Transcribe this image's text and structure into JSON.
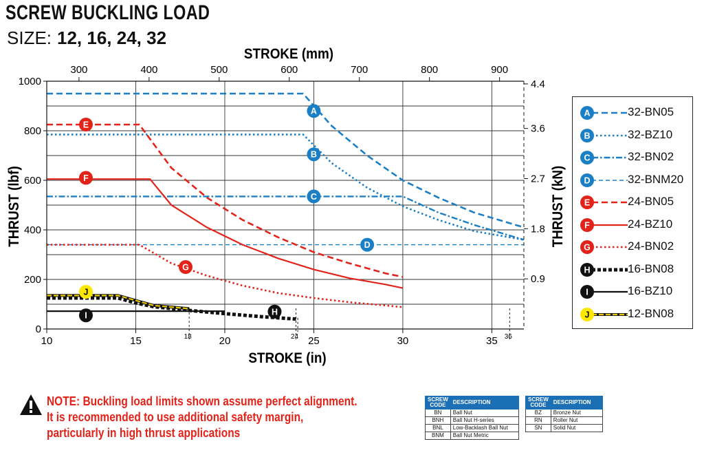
{
  "header": {
    "title": "SCREW BUCKLING LOAD",
    "size_label": "SIZE:",
    "size_values": "12, 16, 24, 32"
  },
  "chart_data": {
    "type": "line",
    "title": "SCREW BUCKLING LOAD",
    "xlabel": "STROKE (in)",
    "x2label": "STROKE (mm)",
    "ylabel": "THRUST (lbf)",
    "y2label": "THRUST (kN)",
    "xlim": [
      10,
      36.8
    ],
    "ylim": [
      0,
      1000
    ],
    "x_ticks": [
      10,
      15,
      20,
      25,
      30,
      35
    ],
    "x_tick_labels": [
      "10",
      "15",
      "20",
      "25",
      "30",
      "35"
    ],
    "x_minor_ticks": [
      18,
      24,
      36
    ],
    "x_minor_tick_labels": [
      "18",
      "24",
      "36"
    ],
    "x2_ticks": [
      300,
      400,
      500,
      600,
      700,
      800,
      900
    ],
    "x2_tick_labels": [
      "300",
      "400",
      "500",
      "600",
      "700",
      "800",
      "900"
    ],
    "y_ticks": [
      0,
      200,
      400,
      600,
      800,
      1000
    ],
    "y_tick_labels": [
      "0",
      "200",
      "400",
      "600",
      "800",
      "1000"
    ],
    "y2_ticks": [
      0.9,
      1.8,
      2.7,
      3.6,
      4.4
    ],
    "y2_tick_labels": [
      "0.9",
      "1.8",
      "2.7",
      "3.6",
      "4.4"
    ],
    "series": [
      {
        "marker": "A",
        "name": "32-BN05",
        "color": "#1a7fc4",
        "style": "dash",
        "x": [
          10,
          12,
          14,
          16,
          18,
          20,
          22,
          24.4,
          26,
          28,
          30,
          32,
          34,
          36.8
        ],
        "y": [
          950,
          950,
          950,
          950,
          950,
          950,
          950,
          950,
          820,
          700,
          600,
          530,
          470,
          410
        ],
        "label_at": [
          25,
          880
        ]
      },
      {
        "marker": "B",
        "name": "32-BZ10",
        "color": "#1a7fc4",
        "style": "dot",
        "x": [
          10,
          12,
          14,
          16,
          18,
          20,
          22,
          24.4,
          26,
          28,
          30,
          32,
          34,
          36.8
        ],
        "y": [
          785,
          785,
          785,
          785,
          785,
          785,
          785,
          785,
          670,
          570,
          495,
          440,
          395,
          360
        ],
        "label_at": [
          25,
          705
        ]
      },
      {
        "marker": "C",
        "name": "32-BN02",
        "color": "#1a7fc4",
        "style": "dashdot",
        "x": [
          10,
          15,
          20,
          25,
          30,
          32,
          34,
          36.8
        ],
        "y": [
          535,
          535,
          535,
          535,
          535,
          470,
          420,
          360
        ],
        "label_at": [
          25,
          535
        ]
      },
      {
        "marker": "D",
        "name": "32-BNM20",
        "color": "#1a7fc4",
        "style": "thindash",
        "x": [
          10,
          20,
          30,
          36.8
        ],
        "y": [
          340,
          340,
          340,
          340
        ],
        "label_at": [
          28,
          340
        ]
      },
      {
        "marker": "E",
        "name": "24-BN05",
        "color": "#e2231a",
        "style": "dash",
        "x": [
          10,
          12,
          15.2,
          17,
          19,
          21,
          23,
          25,
          27,
          29,
          30
        ],
        "y": [
          825,
          825,
          825,
          650,
          530,
          440,
          370,
          310,
          265,
          225,
          210
        ],
        "label_at": [
          12.2,
          825
        ]
      },
      {
        "marker": "F",
        "name": "24-BZ10",
        "color": "#e2231a",
        "style": "solid",
        "x": [
          10,
          12,
          14,
          15.8,
          17,
          19,
          21,
          23,
          25,
          27,
          29,
          30
        ],
        "y": [
          605,
          605,
          605,
          605,
          500,
          410,
          340,
          285,
          240,
          205,
          180,
          165
        ],
        "label_at": [
          12.2,
          610
        ]
      },
      {
        "marker": "G",
        "name": "24-BN02",
        "color": "#e2231a",
        "style": "dot",
        "x": [
          10,
          12,
          15.2,
          17,
          19,
          21,
          23,
          25,
          27,
          29,
          30
        ],
        "y": [
          340,
          340,
          340,
          265,
          215,
          175,
          145,
          125,
          108,
          95,
          88
        ],
        "label_at": [
          17.8,
          250
        ]
      },
      {
        "marker": "H",
        "name": "16-BN08",
        "color": "#111111",
        "style": "thickdash",
        "x": [
          10,
          12,
          14,
          15,
          16,
          18,
          20,
          22,
          24
        ],
        "y": [
          125,
          125,
          125,
          105,
          90,
          75,
          62,
          50,
          40
        ],
        "label_at": [
          22.8,
          70
        ]
      },
      {
        "marker": "I",
        "name": "16-BZ10",
        "color": "#111111",
        "style": "solid",
        "x": [
          10,
          14,
          18,
          20
        ],
        "y": [
          72,
          72,
          72,
          72
        ],
        "label_at": [
          12.2,
          55
        ]
      },
      {
        "marker": "J",
        "name": "12-BN08",
        "color": "#e8c800",
        "style": "dashyellow",
        "x": [
          10,
          12,
          14,
          15,
          16,
          18
        ],
        "y": [
          135,
          135,
          135,
          115,
          95,
          82
        ],
        "label_at": [
          12.2,
          150
        ]
      }
    ]
  },
  "legend": {
    "items": [
      {
        "marker": "A",
        "name": "32-BN05"
      },
      {
        "marker": "B",
        "name": "32-BZ10"
      },
      {
        "marker": "C",
        "name": "32-BN02"
      },
      {
        "marker": "D",
        "name": "32-BNM20"
      },
      {
        "marker": "E",
        "name": "24-BN05"
      },
      {
        "marker": "F",
        "name": "24-BZ10"
      },
      {
        "marker": "G",
        "name": "24-BN02"
      },
      {
        "marker": "H",
        "name": "16-BN08"
      },
      {
        "marker": "I",
        "name": "16-BZ10"
      },
      {
        "marker": "J",
        "name": "12-BN08"
      }
    ]
  },
  "note": {
    "line1": "NOTE: Buckling load limits shown assume perfect alignment.",
    "line2": "It is recommended to use additional safety margin,",
    "line3": "particularly in high thrust applications"
  },
  "code_table_1": {
    "header_code": "SCREW CODE",
    "header_desc": "DESCRIPTION",
    "rows": [
      {
        "code": "BN",
        "desc": "Ball Nut"
      },
      {
        "code": "BNH",
        "desc": "Ball Nut H-series"
      },
      {
        "code": "BNL",
        "desc": "Low-Backlash Ball Nut"
      },
      {
        "code": "BNM",
        "desc": "Ball Nut Metric"
      }
    ]
  },
  "code_table_2": {
    "header_code": "SCREW CODE",
    "header_desc": "DESCRIPTION",
    "rows": [
      {
        "code": "BZ",
        "desc": "Bronze Nut"
      },
      {
        "code": "RN",
        "desc": "Roller Nut"
      },
      {
        "code": "SN",
        "desc": "Solid Nut"
      }
    ]
  }
}
